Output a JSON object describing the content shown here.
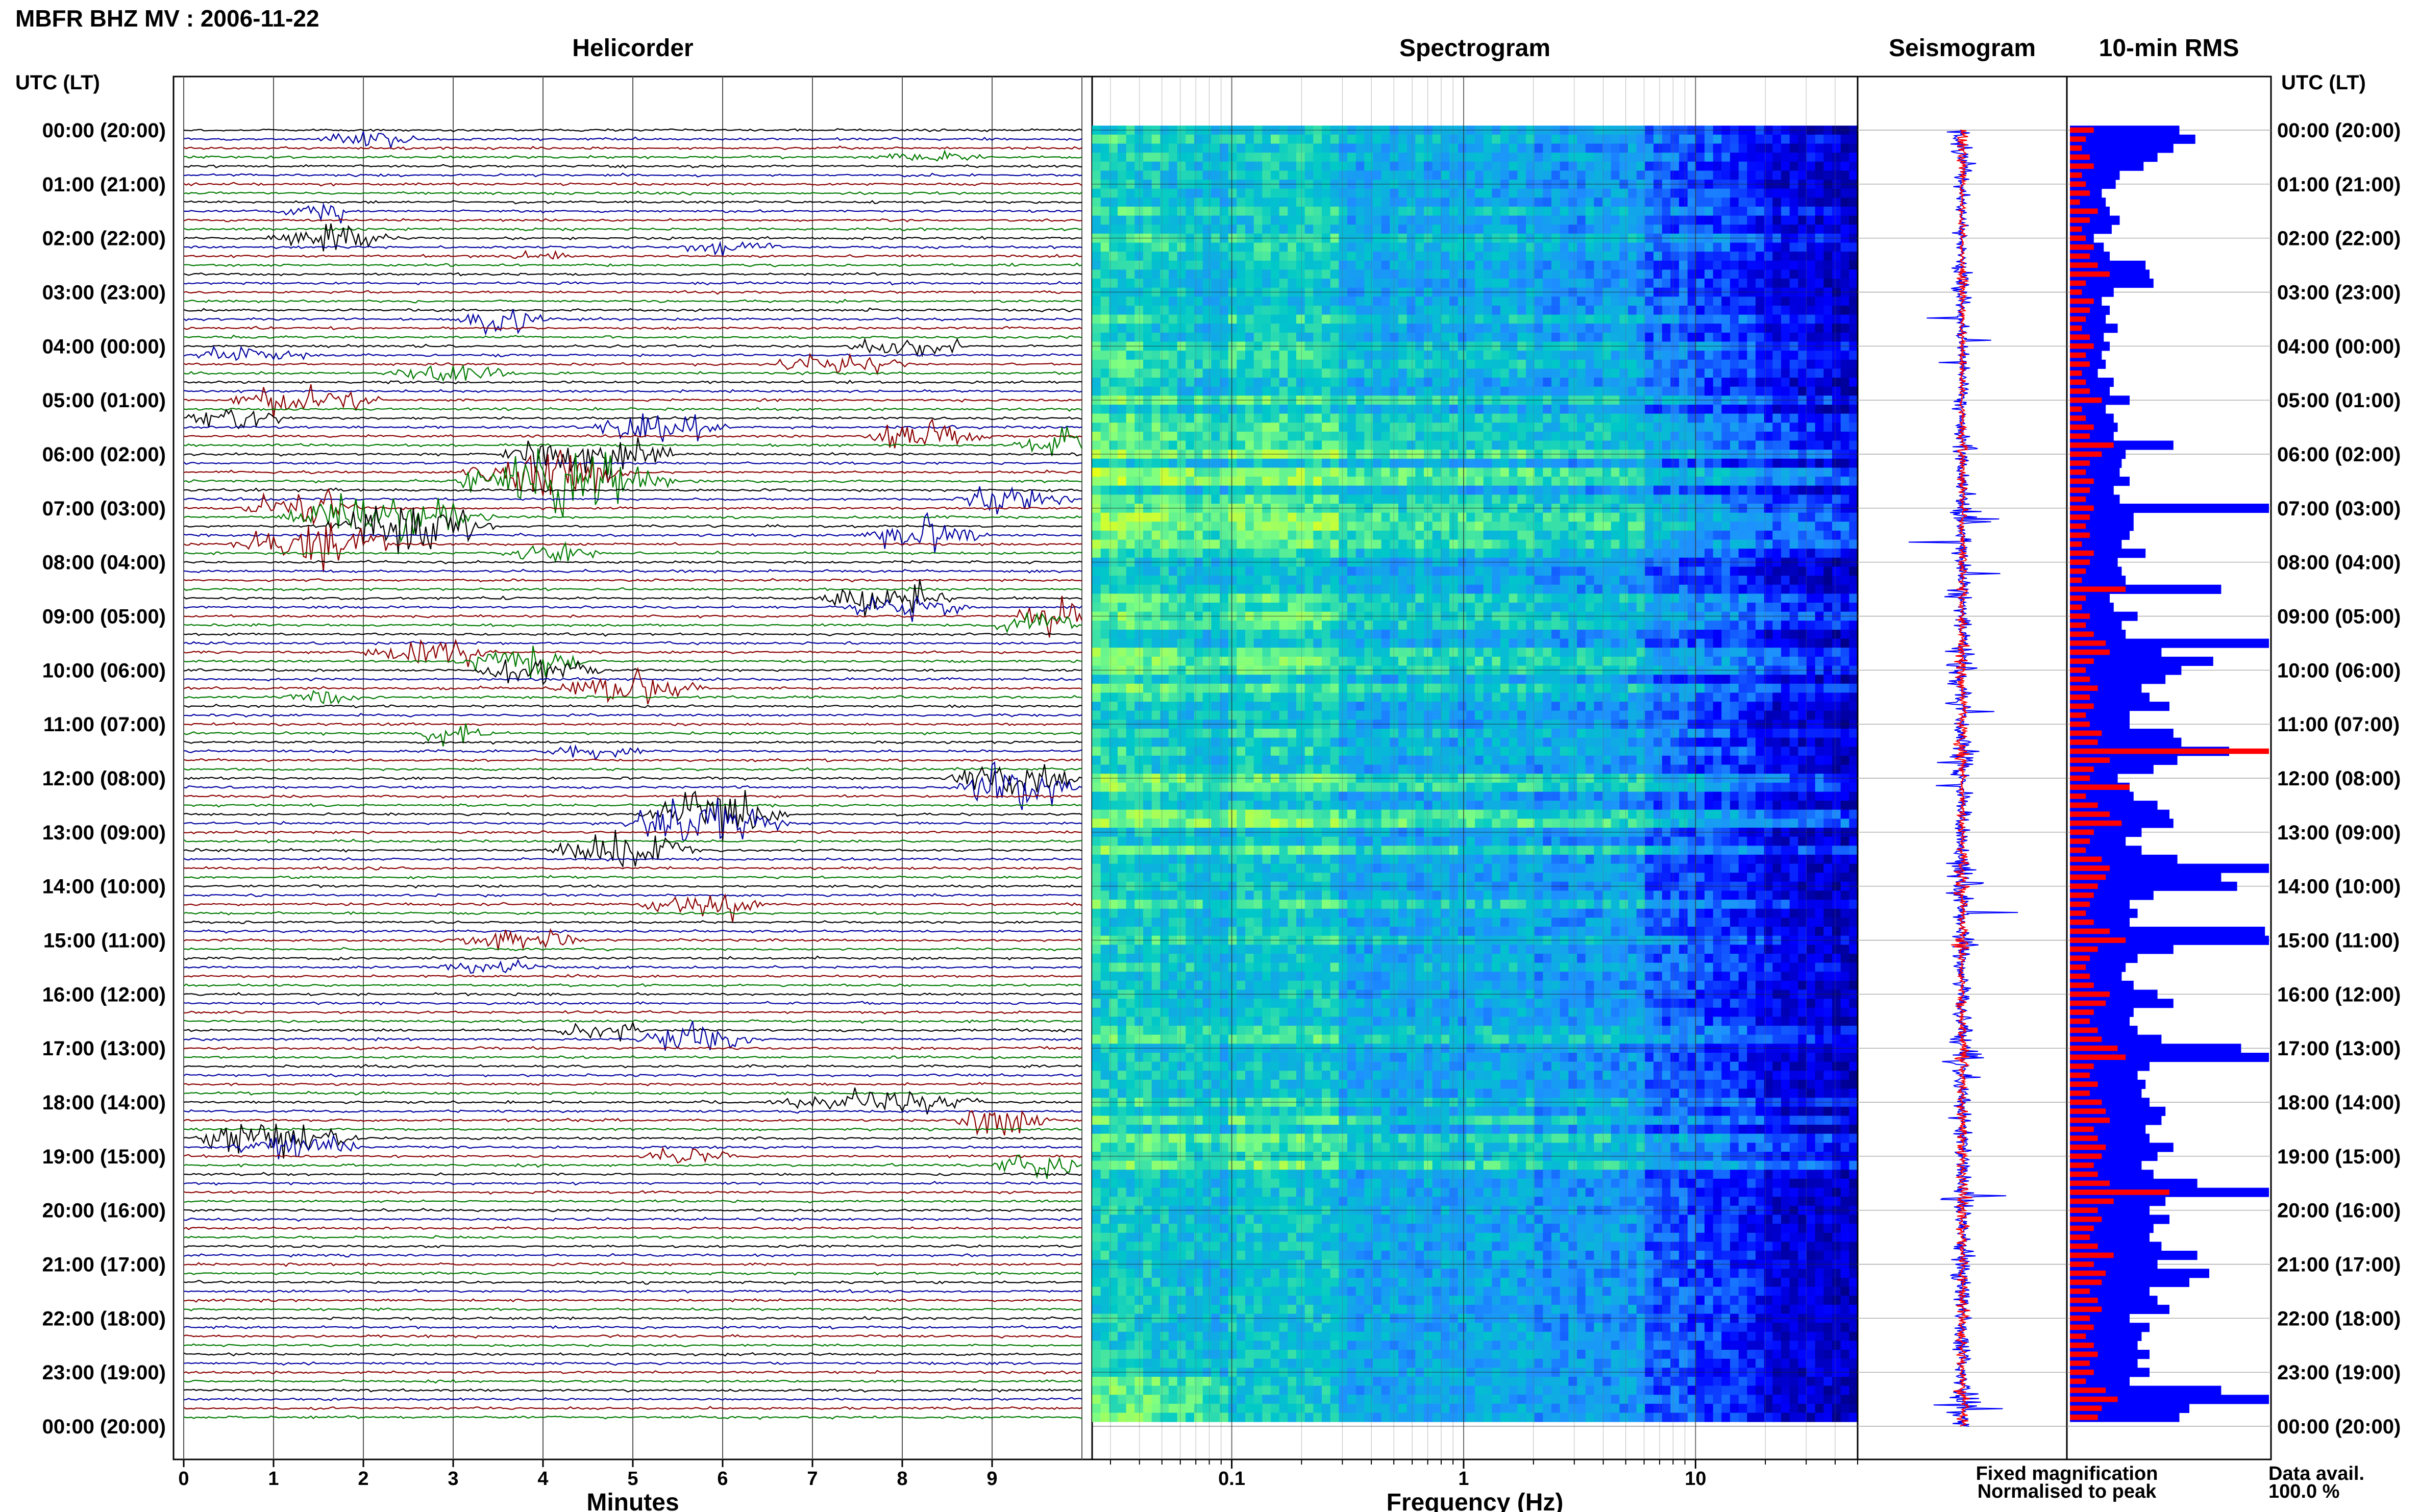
{
  "header": {
    "station_title": "MBFR BHZ MV : 2006-11-22",
    "time_col_label_left": "UTC (LT)",
    "time_col_label_right": "UTC (LT)"
  },
  "panels": {
    "helicorder": "Helicorder",
    "spectrogram": "Spectrogram",
    "seismogram": "Seismogram",
    "rms": "10-min RMS"
  },
  "time_labels": [
    "00:00 (20:00)",
    "01:00 (21:00)",
    "02:00 (22:00)",
    "03:00 (23:00)",
    "04:00 (00:00)",
    "05:00 (01:00)",
    "06:00 (02:00)",
    "07:00 (03:00)",
    "08:00 (04:00)",
    "09:00 (05:00)",
    "10:00 (06:00)",
    "11:00 (07:00)",
    "12:00 (08:00)",
    "13:00 (09:00)",
    "14:00 (10:00)",
    "15:00 (11:00)",
    "16:00 (12:00)",
    "17:00 (13:00)",
    "18:00 (14:00)",
    "19:00 (15:00)",
    "20:00 (16:00)",
    "21:00 (17:00)",
    "22:00 (18:00)",
    "23:00 (19:00)",
    "00:00 (20:00)"
  ],
  "x_axes": {
    "minutes_label": "Minutes",
    "minutes_ticks": [
      "0",
      "1",
      "2",
      "3",
      "4",
      "5",
      "6",
      "7",
      "8",
      "9"
    ],
    "frequency_label": "Frequency (Hz)",
    "frequency_ticks": [
      "0.1",
      "1",
      "10"
    ]
  },
  "legend": {
    "fixed": "Fixed magnification",
    "normalised": "Normalised to peak",
    "fixed_color": "#1010ee",
    "normalised_color": "#ee1010"
  },
  "data_availability": {
    "label": "Data avail.",
    "value": "100.0 %"
  },
  "colors": {
    "trace_cycle": [
      "#000000",
      "#0000a0",
      "#8b0000",
      "#007a00"
    ],
    "bar_fixed": "#0000ff",
    "bar_normalised": "#ff0000"
  },
  "chart_data": [
    {
      "type": "line",
      "title": "Helicorder",
      "xlabel": "Minutes",
      "xlim": [
        0,
        10
      ],
      "rows": 144,
      "row_duration_min": 10,
      "description_events_min_offsets": "traces stacked every 10 minutes, 24 h total"
    },
    {
      "type": "heatmap",
      "title": "Spectrogram",
      "xlabel": "Frequency (Hz)",
      "xscale": "log",
      "xlim": [
        0.025,
        50
      ],
      "rows": 144,
      "colormap": [
        "#00008b",
        "#0000ff",
        "#1e90ff",
        "#00c8c8",
        "#80ff80",
        "#ffff00"
      ]
    },
    {
      "type": "line",
      "title": "Seismogram",
      "series": [
        {
          "name": "Fixed magnification"
        },
        {
          "name": "Normalised to peak"
        }
      ]
    },
    {
      "type": "bar",
      "title": "10-min RMS",
      "orientation": "horizontal",
      "series": [
        {
          "name": "Fixed magnification",
          "values": [
            0.55,
            0.63,
            0.52,
            0.44,
            0.37,
            0.25,
            0.23,
            0.16,
            0.18,
            0.2,
            0.25,
            0.21,
            0.12,
            0.17,
            0.2,
            0.38,
            0.4,
            0.42,
            0.22,
            0.16,
            0.2,
            0.18,
            0.24,
            0.17,
            0.2,
            0.16,
            0.18,
            0.14,
            0.22,
            0.2,
            0.3,
            0.18,
            0.22,
            0.24,
            0.22,
            0.52,
            0.28,
            0.26,
            0.25,
            0.3,
            0.22,
            0.25,
            1.0,
            0.32,
            0.32,
            0.3,
            0.26,
            0.38,
            0.24,
            0.26,
            0.28,
            0.76,
            0.2,
            0.22,
            0.34,
            0.26,
            0.28,
            1.0,
            0.46,
            0.72,
            0.56,
            0.48,
            0.36,
            0.4,
            0.5,
            0.3,
            0.3,
            0.52,
            0.56,
            0.8,
            0.54,
            0.42,
            0.24,
            0.3,
            0.32,
            0.44,
            0.5,
            0.52,
            0.36,
            0.28,
            0.36,
            0.54,
            1.0,
            0.76,
            0.84,
            0.42,
            0.3,
            0.34,
            0.3,
            0.98,
            1.0,
            0.52,
            0.34,
            0.28,
            0.26,
            0.32,
            0.44,
            0.52,
            0.32,
            0.3,
            0.34,
            0.46,
            0.86,
            1.0,
            0.4,
            0.34,
            0.38,
            0.36,
            0.4,
            0.48,
            0.46,
            0.38,
            0.4,
            0.52,
            0.44,
            0.36,
            0.42,
            0.64,
            1.0,
            0.48,
            0.4,
            0.5,
            0.42,
            0.4,
            0.46,
            0.64,
            0.44,
            0.7,
            0.6,
            0.4,
            0.44,
            0.5,
            0.3,
            0.4,
            0.36,
            0.34,
            0.4,
            0.34,
            0.4,
            0.3,
            0.76,
            1.0,
            0.6,
            0.55
          ]
        },
        {
          "name": "Normalised to peak",
          "values": [
            0.12,
            0.08,
            0.06,
            0.1,
            0.12,
            0.06,
            0.08,
            0.1,
            0.05,
            0.14,
            0.1,
            0.06,
            0.08,
            0.12,
            0.1,
            0.14,
            0.2,
            0.08,
            0.06,
            0.12,
            0.1,
            0.08,
            0.06,
            0.1,
            0.12,
            0.08,
            0.1,
            0.06,
            0.08,
            0.1,
            0.16,
            0.06,
            0.08,
            0.12,
            0.1,
            0.22,
            0.16,
            0.1,
            0.08,
            0.12,
            0.1,
            0.08,
            0.12,
            0.1,
            0.08,
            0.1,
            0.06,
            0.12,
            0.1,
            0.08,
            0.06,
            0.28,
            0.08,
            0.06,
            0.1,
            0.08,
            0.12,
            0.18,
            0.2,
            0.12,
            0.08,
            0.1,
            0.14,
            0.1,
            0.12,
            0.08,
            0.1,
            0.16,
            0.14,
            1.0,
            0.2,
            0.12,
            0.1,
            0.3,
            0.08,
            0.14,
            0.2,
            0.26,
            0.12,
            0.1,
            0.08,
            0.16,
            0.2,
            0.18,
            0.14,
            0.12,
            0.1,
            0.08,
            0.12,
            0.2,
            0.28,
            0.14,
            0.1,
            0.08,
            0.1,
            0.12,
            0.2,
            0.18,
            0.12,
            0.1,
            0.14,
            0.16,
            0.24,
            0.28,
            0.12,
            0.1,
            0.14,
            0.1,
            0.16,
            0.18,
            0.2,
            0.12,
            0.14,
            0.18,
            0.16,
            0.12,
            0.14,
            0.2,
            0.5,
            0.22,
            0.14,
            0.16,
            0.12,
            0.1,
            0.14,
            0.22,
            0.12,
            0.18,
            0.16,
            0.1,
            0.14,
            0.16,
            0.1,
            0.12,
            0.08,
            0.12,
            0.14,
            0.1,
            0.12,
            0.08,
            0.18,
            0.24,
            0.16,
            0.14
          ]
        }
      ]
    }
  ]
}
